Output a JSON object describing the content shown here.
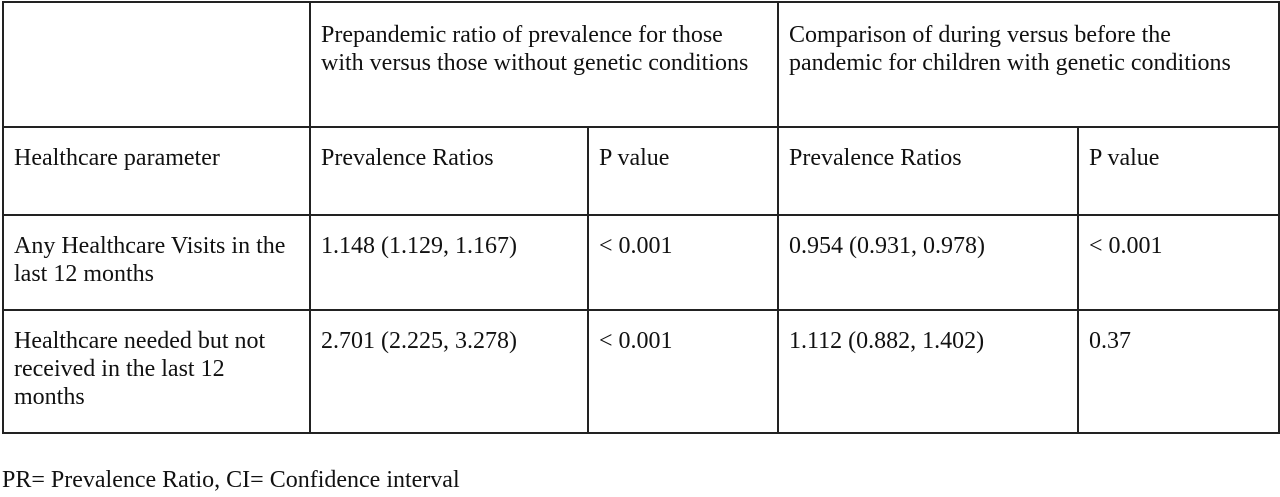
{
  "table": {
    "group_header": {
      "corner": "",
      "prepandemic": "Prepandemic ratio of prevalence for those with versus those without genetic conditions",
      "comparison": "Comparison of during versus before the pandemic for children with genetic conditions"
    },
    "sub_header": {
      "parameter": "Healthcare parameter",
      "pr_1": "Prevalence Ratios",
      "p_1": "P value",
      "pr_2": "Prevalence Ratios",
      "p_2": "P value"
    },
    "rows": [
      {
        "parameter": "Any Healthcare Visits in the last 12 months",
        "pr_1": "1.148 (1.129, 1.167)",
        "p_1": "< 0.001",
        "pr_2": "0.954 (0.931, 0.978)",
        "p_2": "< 0.001"
      },
      {
        "parameter": "Healthcare needed but not received in the last 12 months",
        "pr_1": "2.701 (2.225, 3.278)",
        "p_1": "< 0.001",
        "pr_2": "1.112 (0.882, 1.402)",
        "p_2": "0.37"
      }
    ]
  },
  "footnote": "PR= Prevalence Ratio, CI= Confidence interval"
}
